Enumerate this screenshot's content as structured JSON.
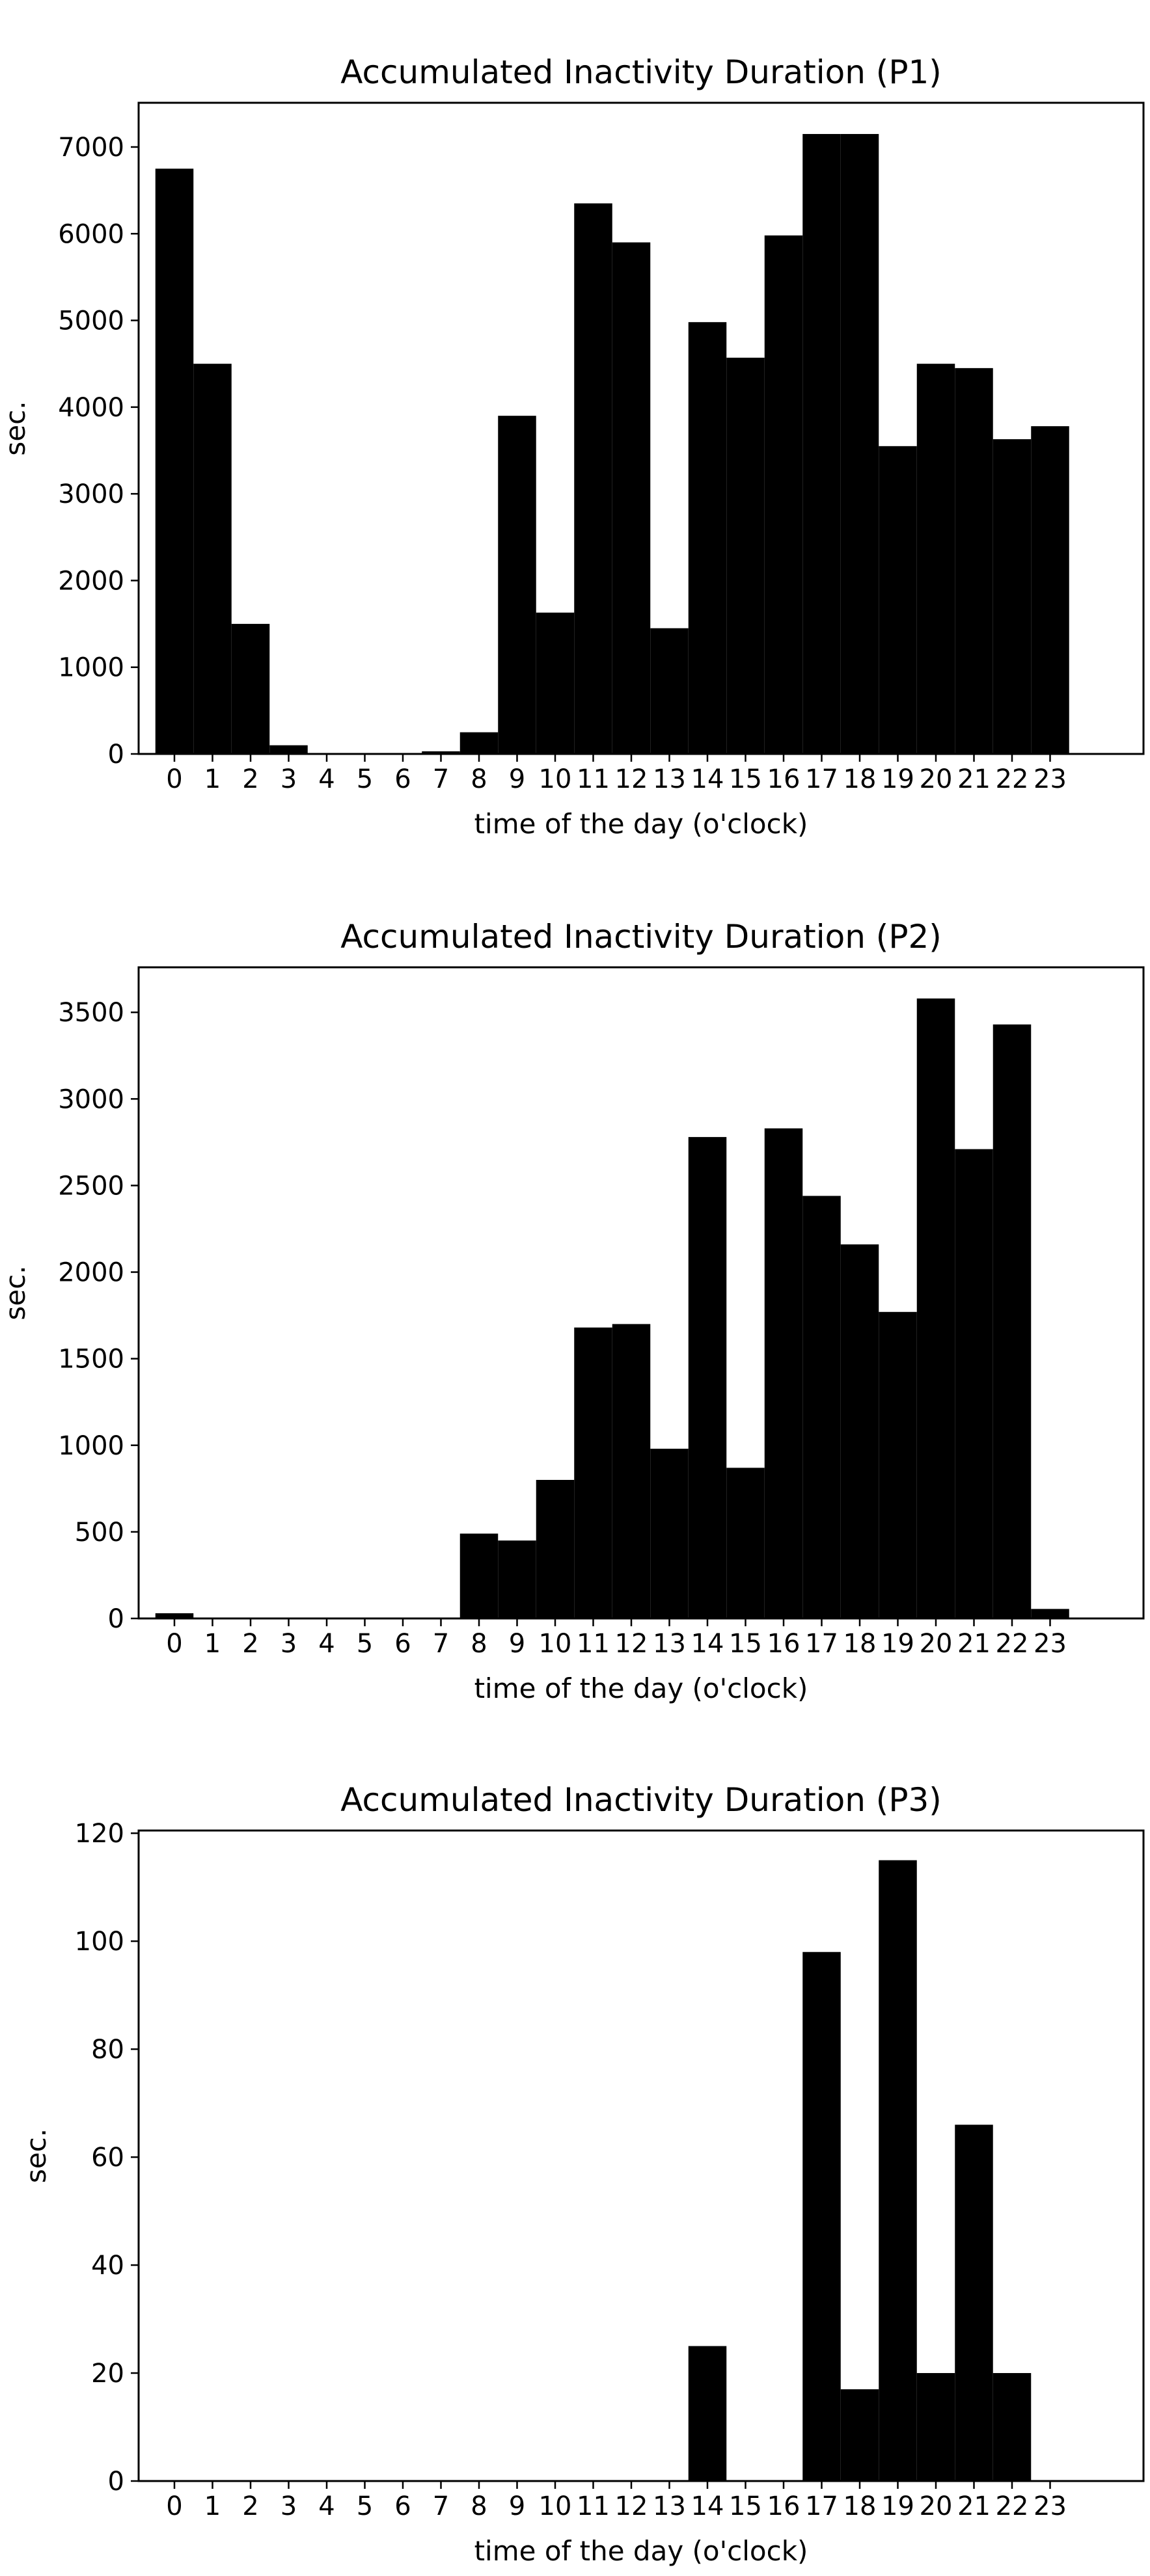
{
  "chart_data": [
    {
      "type": "bar",
      "title": "Accumulated Inactivity Duration (P1)",
      "xlabel": "time of the day (o'clock)",
      "ylabel": "sec.",
      "categories": [
        "0",
        "1",
        "2",
        "3",
        "4",
        "5",
        "6",
        "7",
        "8",
        "9",
        "10",
        "11",
        "12",
        "13",
        "14",
        "15",
        "16",
        "17",
        "18",
        "19",
        "20",
        "21",
        "22",
        "23"
      ],
      "values": [
        6750,
        4500,
        1500,
        100,
        0,
        0,
        0,
        30,
        250,
        3900,
        1630,
        6350,
        5900,
        1450,
        4980,
        4570,
        5980,
        7150,
        7150,
        3550,
        4500,
        4450,
        3630,
        3780
      ],
      "yticks": [
        0,
        1000,
        2000,
        3000,
        4000,
        5000,
        6000,
        7000
      ],
      "ylim": [
        0,
        7510
      ],
      "color": "#000000",
      "grid": false
    },
    {
      "type": "bar",
      "title": "Accumulated Inactivity Duration (P2)",
      "xlabel": "time of the day (o'clock)",
      "ylabel": "sec.",
      "categories": [
        "0",
        "1",
        "2",
        "3",
        "4",
        "5",
        "6",
        "7",
        "8",
        "9",
        "10",
        "11",
        "12",
        "13",
        "14",
        "15",
        "16",
        "17",
        "18",
        "19",
        "20",
        "21",
        "22",
        "23"
      ],
      "values": [
        30,
        0,
        0,
        0,
        0,
        0,
        0,
        0,
        490,
        450,
        800,
        1680,
        1700,
        980,
        2780,
        870,
        2830,
        2440,
        2160,
        1770,
        3580,
        2710,
        3430,
        55
      ],
      "yticks": [
        0,
        500,
        1000,
        1500,
        2000,
        2500,
        3000,
        3500
      ],
      "ylim": [
        0,
        3760
      ],
      "color": "#000000",
      "grid": false
    },
    {
      "type": "bar",
      "title": "Accumulated Inactivity Duration (P3)",
      "xlabel": "time of the day (o'clock)",
      "ylabel": "sec.",
      "categories": [
        "0",
        "1",
        "2",
        "3",
        "4",
        "5",
        "6",
        "7",
        "8",
        "9",
        "10",
        "11",
        "12",
        "13",
        "14",
        "15",
        "16",
        "17",
        "18",
        "19",
        "20",
        "21",
        "22",
        "23"
      ],
      "values": [
        0,
        0,
        0,
        0,
        0,
        0,
        0,
        0,
        0,
        0,
        0,
        0,
        0,
        0,
        25,
        0,
        0,
        98,
        17,
        115,
        20,
        66,
        20,
        0
      ],
      "yticks": [
        0,
        20,
        40,
        60,
        80,
        100,
        120
      ],
      "ylim": [
        0,
        120.5
      ],
      "color": "#000000",
      "grid": false
    }
  ]
}
